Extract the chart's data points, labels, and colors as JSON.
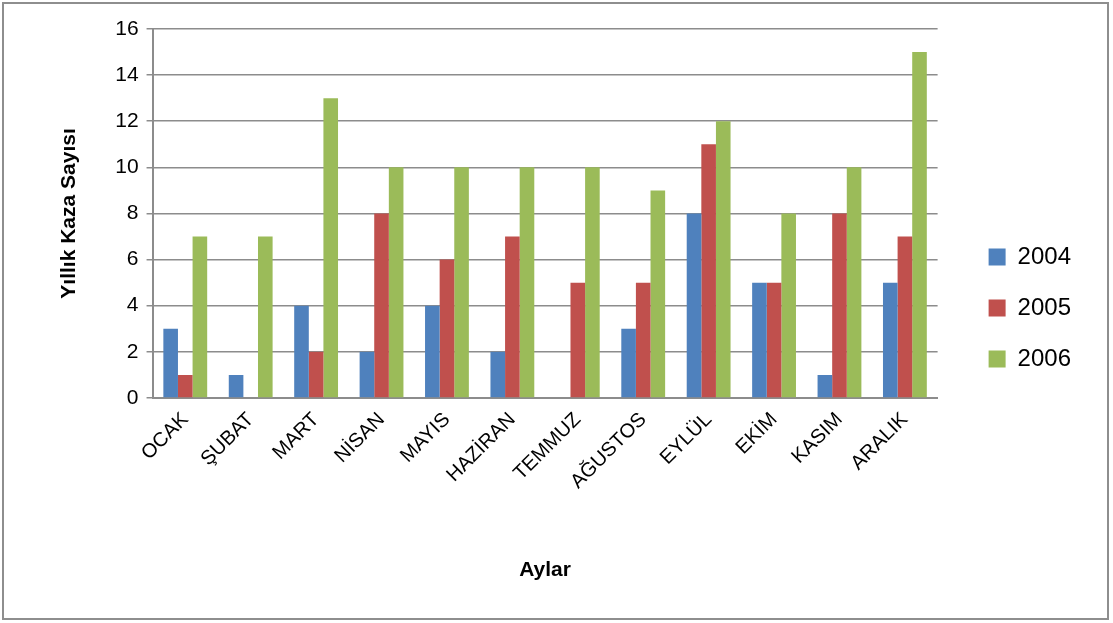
{
  "chart_data": {
    "type": "bar",
    "xlabel": "Aylar",
    "ylabel": "Yıllık Kaza Sayısı",
    "categories": [
      "OCAK",
      "ŞUBAT",
      "MART",
      "NİSAN",
      "MAYIS",
      "HAZİRAN",
      "TEMMUZ",
      "AĞUSTOS",
      "EYLÜL",
      "EKİM",
      "KASIM",
      "ARALIK"
    ],
    "series": [
      {
        "name": "2004",
        "color": "#4f81bd",
        "values": [
          3,
          1,
          4,
          2,
          4,
          2,
          0,
          3,
          8,
          5,
          1,
          5
        ]
      },
      {
        "name": "2005",
        "color": "#c0504d",
        "values": [
          1,
          0,
          2,
          8,
          6,
          7,
          5,
          5,
          11,
          5,
          8,
          7
        ]
      },
      {
        "name": "2006",
        "color": "#9bbb59",
        "values": [
          7,
          7,
          13,
          10,
          10,
          10,
          10,
          9,
          12,
          8,
          10,
          15
        ]
      }
    ],
    "ylim": [
      0,
      16
    ],
    "yticks": [
      0,
      2,
      4,
      6,
      8,
      10,
      12,
      14,
      16
    ],
    "grid": "y",
    "legend": "right"
  }
}
